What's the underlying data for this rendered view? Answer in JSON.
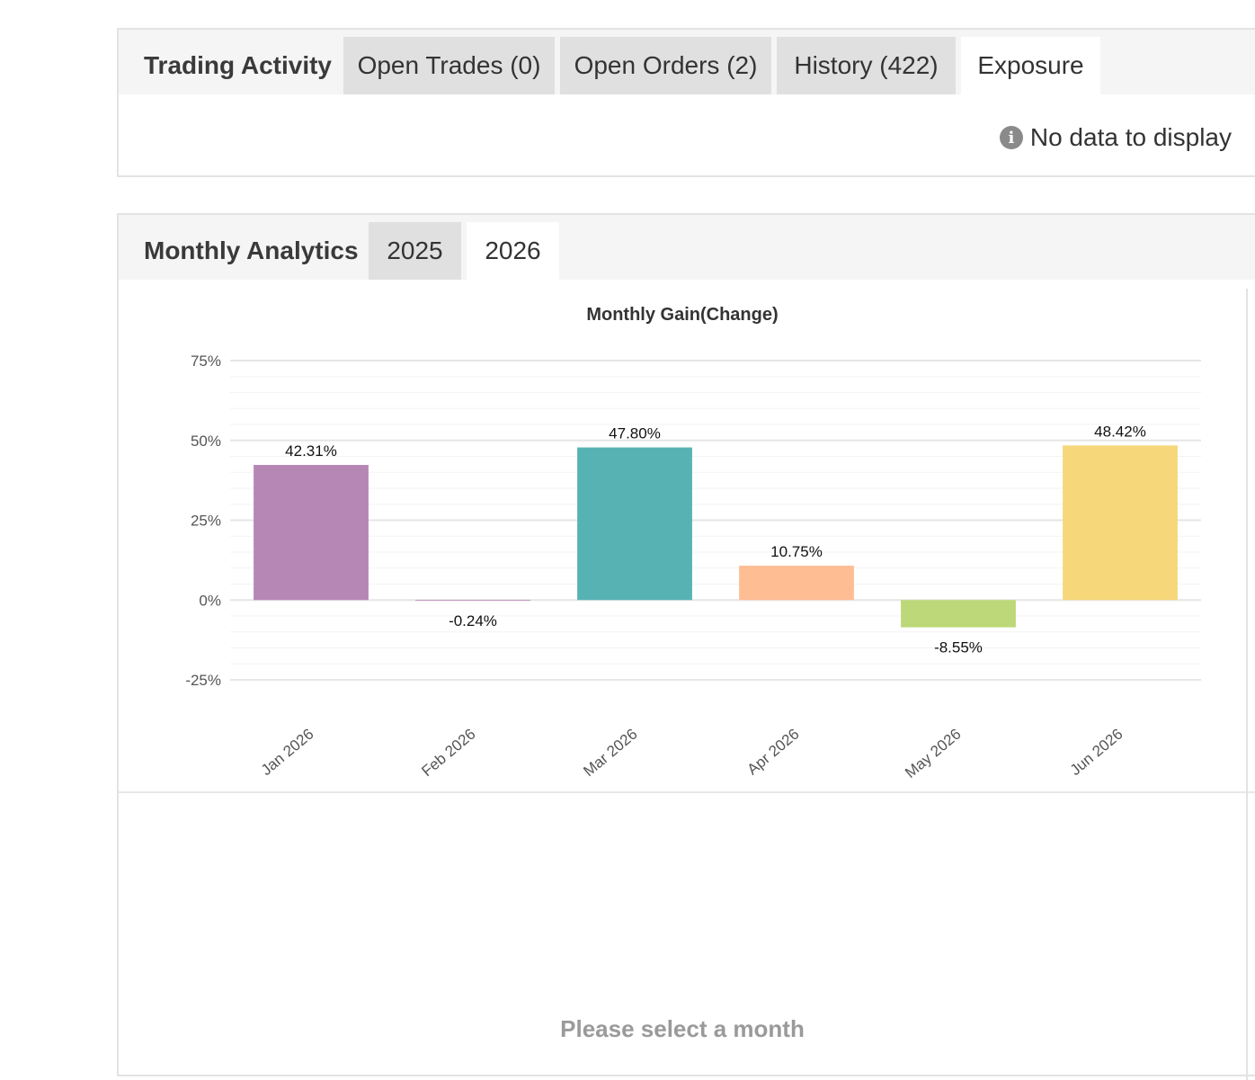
{
  "trading_activity": {
    "title": "Trading Activity",
    "tabs": [
      {
        "label": "Open Trades (0)",
        "active": false
      },
      {
        "label": "Open Orders (2)",
        "active": false
      },
      {
        "label": "History (422)",
        "active": false
      },
      {
        "label": "Exposure",
        "active": true
      }
    ],
    "empty_message": "No data to display",
    "empty_icon": "info-icon"
  },
  "monthly_analytics": {
    "title": "Monthly Analytics",
    "tabs": [
      {
        "label": "2025",
        "active": false
      },
      {
        "label": "2026",
        "active": true
      }
    ],
    "prompt": "Please select a month"
  },
  "chart_data": {
    "type": "bar",
    "title": "Monthly Gain(Change)",
    "xlabel": "",
    "ylabel": "",
    "categories": [
      "Jan 2026",
      "Feb 2026",
      "Mar 2026",
      "Apr 2026",
      "May 2026",
      "Jun 2026"
    ],
    "values": [
      42.31,
      -0.24,
      47.8,
      10.75,
      -8.55,
      48.42
    ],
    "data_labels": [
      "42.31%",
      "-0.24%",
      "47.80%",
      "10.75%",
      "-8.55%",
      "48.42%"
    ],
    "colors": [
      "#b687b4",
      "#b687b4",
      "#57b3b3",
      "#ffbd94",
      "#bcd878",
      "#f6d77a"
    ],
    "ylim": [
      -25,
      75
    ],
    "yticks": [
      75,
      50,
      25,
      0,
      -25
    ],
    "ytick_labels": [
      "75%",
      "50%",
      "25%",
      "0%",
      "-25%"
    ],
    "grid": true,
    "legend": "none"
  }
}
